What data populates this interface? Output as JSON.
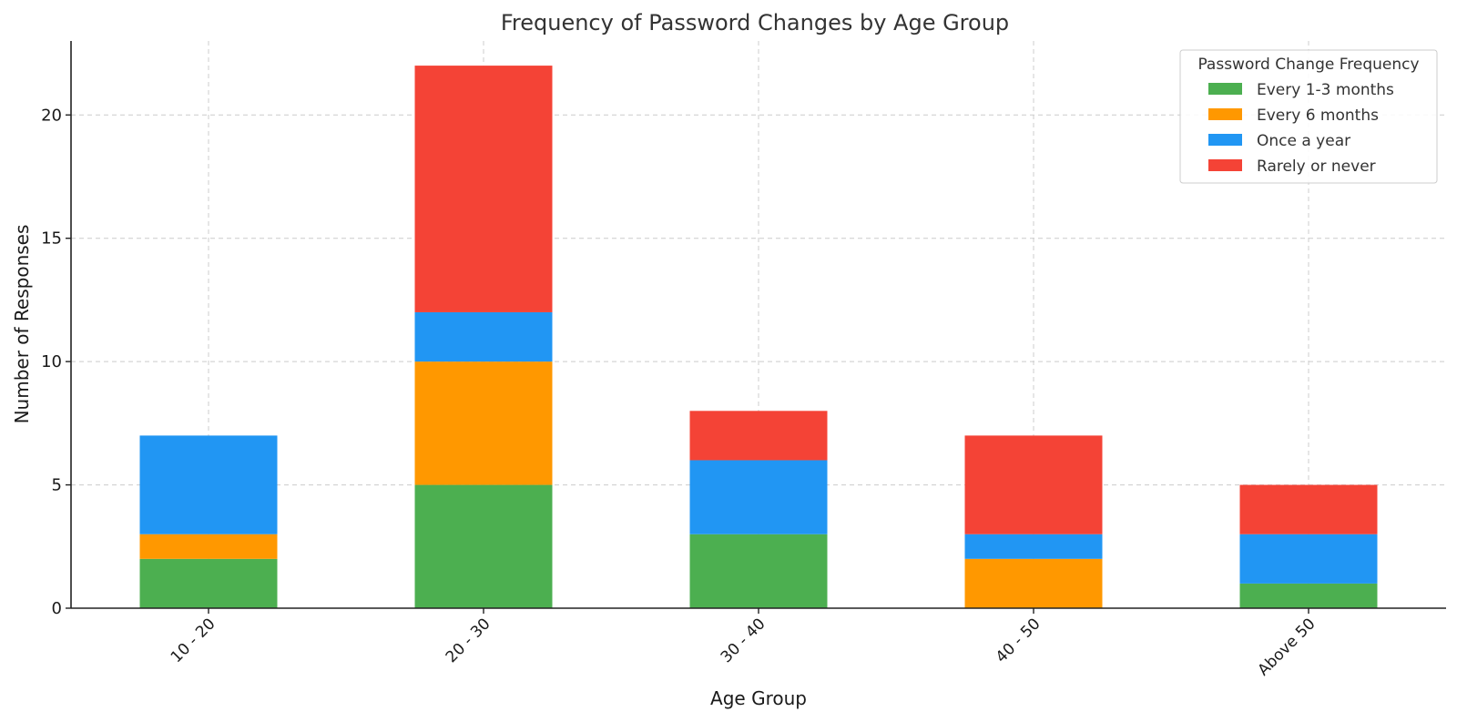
{
  "chart_data": {
    "type": "bar",
    "stacked": true,
    "title": "Frequency of Password Changes by Age Group",
    "xlabel": "Age Group",
    "ylabel": "Number of Responses",
    "categories": [
      "10 - 20",
      "20 - 30",
      "30 - 40",
      "40 - 50",
      "Above 50"
    ],
    "ylim": [
      0,
      23
    ],
    "yticks": [
      0,
      5,
      10,
      15,
      20
    ],
    "grid": true,
    "legend": {
      "title": "Password Change Frequency",
      "placement": "top-right"
    },
    "series": [
      {
        "name": "Every 1-3 months",
        "color": "#4caf50",
        "values": [
          2,
          5,
          3,
          0,
          1
        ]
      },
      {
        "name": "Every 6 months",
        "color": "#ff9800",
        "values": [
          1,
          5,
          0,
          2,
          0
        ]
      },
      {
        "name": "Once a year",
        "color": "#2196f3",
        "values": [
          4,
          2,
          3,
          1,
          2
        ]
      },
      {
        "name": "Rarely or never",
        "color": "#f44336",
        "values": [
          0,
          10,
          2,
          4,
          2
        ]
      }
    ]
  }
}
